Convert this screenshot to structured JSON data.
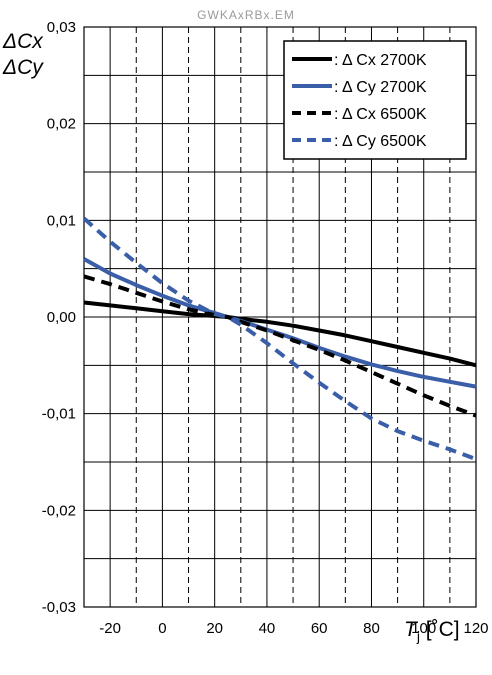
{
  "watermark": "GWKAxRBx.EM",
  "chart_data": {
    "type": "line",
    "ylabel_lines": [
      "ΔCx",
      "ΔCy"
    ],
    "xlabel": {
      "symbol": "T",
      "subscript": "j",
      "unit": "[˚C]"
    },
    "xlim": [
      -30,
      120
    ],
    "ylim": [
      -0.03,
      0.03
    ],
    "x_ticks": [
      -20,
      0,
      20,
      40,
      60,
      80,
      100,
      120
    ],
    "x_tick_labels": [
      "-20",
      "0",
      "20",
      "40",
      "60",
      "80",
      "100",
      "120"
    ],
    "x_minor_dashed": [
      -30,
      -10,
      10,
      30,
      50,
      70,
      90,
      110
    ],
    "y_ticks": [
      -0.03,
      -0.02,
      -0.01,
      0.0,
      0.01,
      0.02,
      0.03
    ],
    "y_tick_labels": [
      "-0,03",
      "-0,02",
      "-0,01",
      "0,00",
      "0,01",
      "0,02",
      "0,03"
    ],
    "y_minor_solid": [
      -0.025,
      -0.015,
      -0.005,
      0.005,
      0.015,
      0.025
    ],
    "legend_position": "top-right",
    "x": [
      -30,
      -20,
      -10,
      0,
      10,
      20,
      25,
      30,
      40,
      50,
      60,
      70,
      80,
      90,
      100,
      110,
      120
    ],
    "series": [
      {
        "name": ": Δ Cx 2700K",
        "color": "#000000",
        "dash": "solid",
        "values": [
          0.0015,
          0.0012,
          0.0009,
          0.0006,
          0.0003,
          0.0001,
          0.0,
          -0.0002,
          -0.0005,
          -0.0009,
          -0.0014,
          -0.0019,
          -0.0025,
          -0.0031,
          -0.0037,
          -0.0043,
          -0.005
        ]
      },
      {
        "name": ": Δ Cy 2700K",
        "color": "#3a5ea8",
        "dash": "solid",
        "values": [
          0.006,
          0.0045,
          0.0033,
          0.0022,
          0.0012,
          0.0004,
          0.0,
          -0.0004,
          -0.0013,
          -0.0022,
          -0.0032,
          -0.0041,
          -0.0049,
          -0.0056,
          -0.0062,
          -0.0067,
          -0.0072
        ]
      },
      {
        "name": ": Δ Cx 6500K",
        "color": "#000000",
        "dash": "dashed",
        "values": [
          0.0042,
          0.0034,
          0.0025,
          0.0016,
          0.0008,
          0.0002,
          0.0,
          -0.0005,
          -0.0014,
          -0.0024,
          -0.0034,
          -0.0045,
          -0.0057,
          -0.0069,
          -0.0081,
          -0.0092,
          -0.0102
        ]
      },
      {
        "name": ": Δ Cy 6500K",
        "color": "#3a5ea8",
        "dash": "dashed",
        "values": [
          0.0102,
          0.0078,
          0.0056,
          0.0035,
          0.0017,
          0.0003,
          0.0,
          -0.0008,
          -0.0027,
          -0.0048,
          -0.0068,
          -0.0087,
          -0.0105,
          -0.0118,
          -0.0128,
          -0.0137,
          -0.0147
        ]
      }
    ]
  }
}
